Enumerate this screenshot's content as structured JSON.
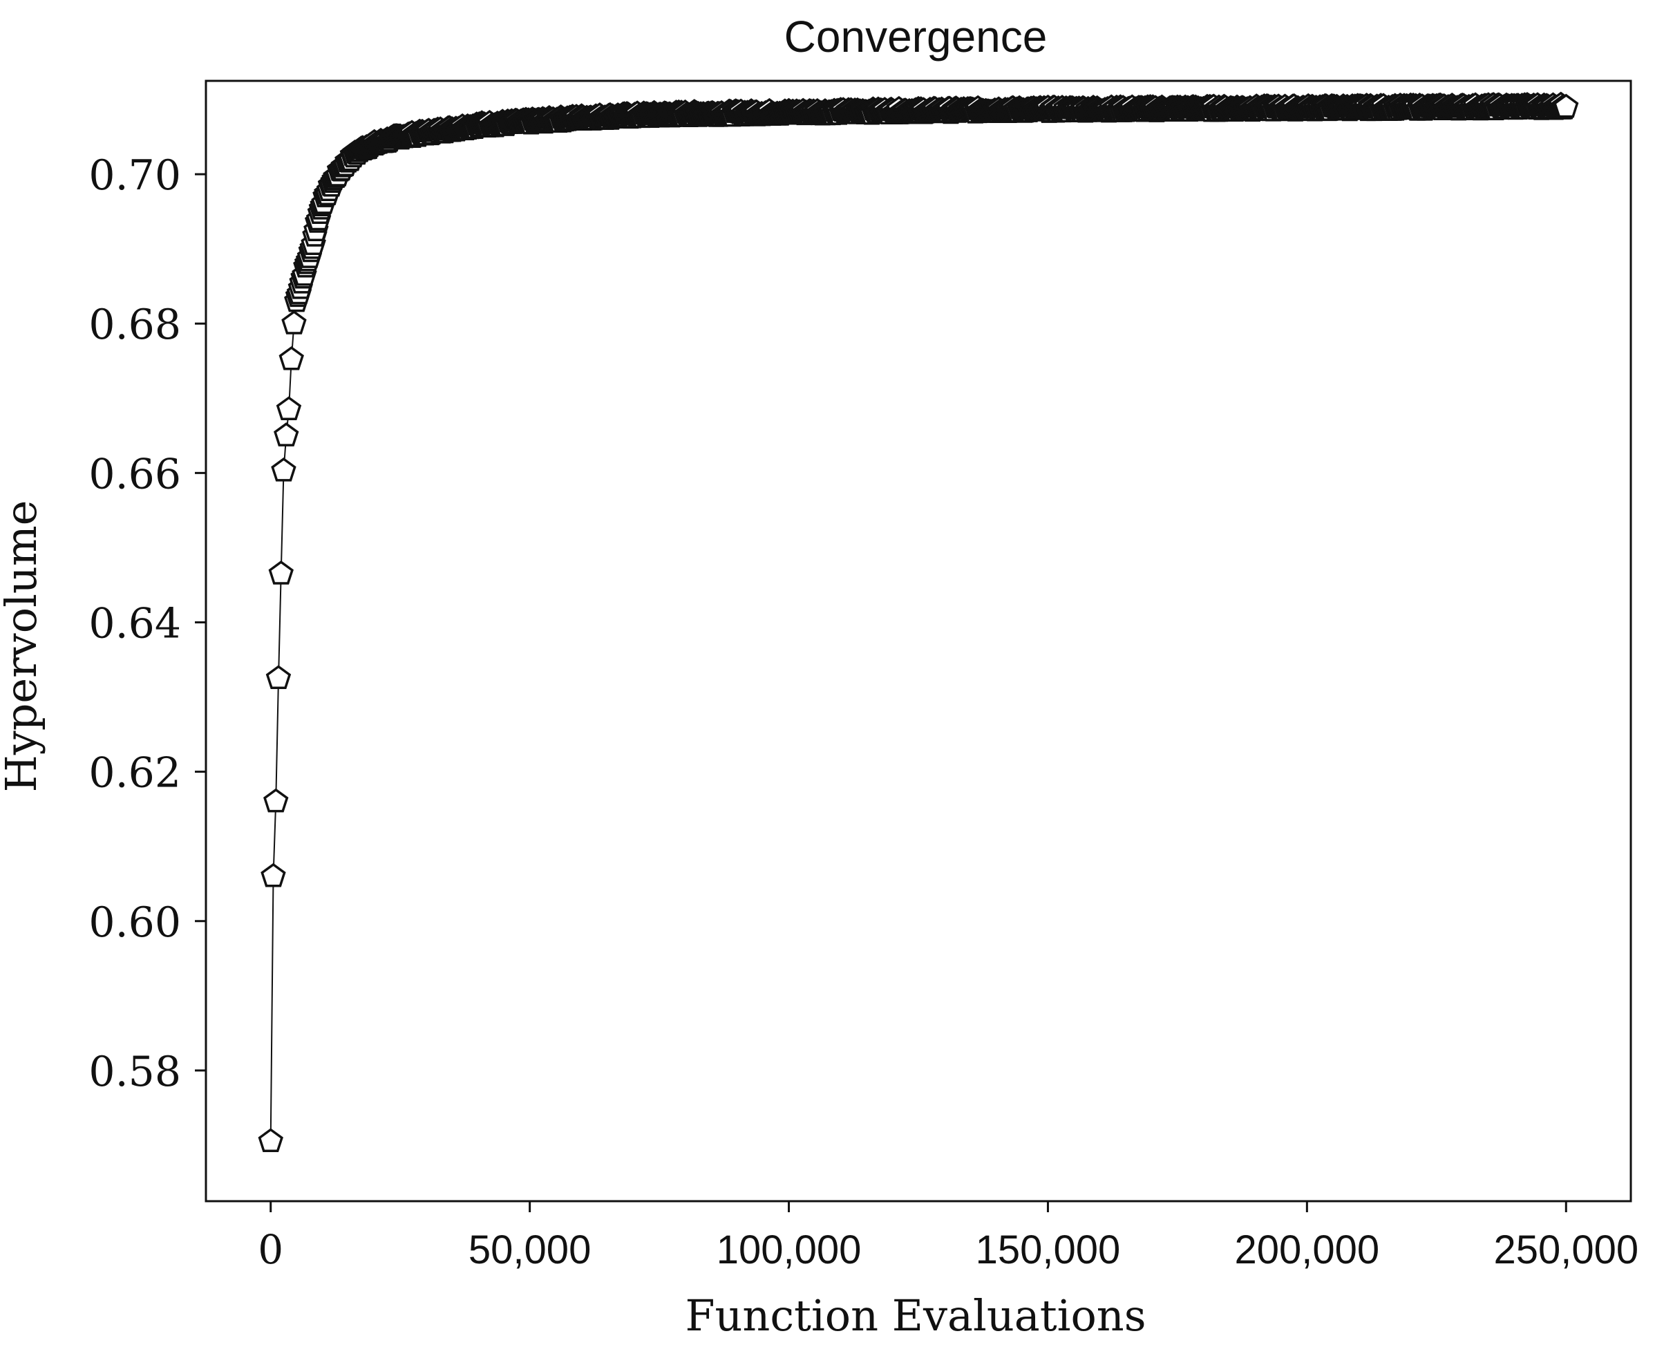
{
  "chart_data": {
    "type": "line",
    "title": "Convergence",
    "xlabel": "Function Evaluations",
    "ylabel": "Hypervolume",
    "xlim": [
      -12500,
      262500
    ],
    "ylim": [
      0.5625,
      0.7125
    ],
    "xticks": [
      0,
      50000,
      100000,
      150000,
      200000,
      250000
    ],
    "xtick_labels": [
      "0",
      "50,000",
      "100,000",
      "150,000",
      "200,000",
      "250,000"
    ],
    "yticks": [
      0.58,
      0.6,
      0.62,
      0.64,
      0.66,
      0.68,
      0.7
    ],
    "ytick_labels": [
      "0.58",
      "0.60",
      "0.62",
      "0.64",
      "0.66",
      "0.68",
      "0.70"
    ],
    "grid": false,
    "legend": "none",
    "marker": "pentagon",
    "colors": {
      "line": "#111111",
      "marker_edge": "#111111",
      "marker_fill": "#ffffff",
      "axes": "#111111"
    },
    "series": [
      {
        "x": [
          0,
          500,
          1000,
          1500,
          2000,
          2500,
          3000,
          3500,
          4000,
          4500,
          5000,
          6000,
          7000,
          8000,
          9000,
          10000,
          12000,
          14000,
          16000,
          18000,
          20000,
          25000,
          30000,
          35000,
          40000,
          50000,
          60000,
          70000,
          80000,
          100000,
          120000,
          150000,
          200000,
          250000
        ],
        "y": [
          0.5705,
          0.606,
          0.616,
          0.6325,
          0.6465,
          0.6603,
          0.665,
          0.6685,
          0.6752,
          0.68,
          0.683,
          0.6855,
          0.688,
          0.69,
          0.6935,
          0.696,
          0.699,
          0.701,
          0.7025,
          0.7035,
          0.704,
          0.705,
          0.7055,
          0.706,
          0.7065,
          0.707,
          0.7075,
          0.7078,
          0.708,
          0.7082,
          0.7084,
          0.7086,
          0.7088,
          0.709
        ]
      }
    ]
  }
}
